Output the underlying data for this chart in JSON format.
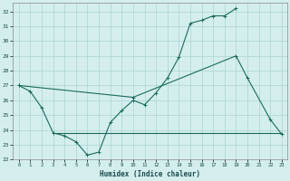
{
  "xlabel": "Humidex (Indice chaleur)",
  "background_color": "#d4eeee",
  "grid_color": "#aad4d4",
  "line_color": "#1a6b5a",
  "xlim": [
    -0.5,
    23.5
  ],
  "ylim": [
    22,
    32.6
  ],
  "yticks": [
    22,
    23,
    24,
    25,
    26,
    27,
    28,
    29,
    30,
    31,
    32
  ],
  "xticks": [
    0,
    1,
    2,
    3,
    4,
    5,
    6,
    7,
    8,
    9,
    10,
    11,
    12,
    13,
    14,
    15,
    16,
    17,
    18,
    19,
    20,
    21,
    22,
    23
  ],
  "line1_x": [
    0,
    1,
    2,
    3,
    4,
    5,
    6,
    7,
    8,
    9,
    10,
    11,
    12,
    13,
    14,
    15,
    16,
    17,
    18,
    19
  ],
  "line1_y": [
    27.0,
    26.6,
    25.5,
    23.8,
    23.6,
    23.2,
    22.3,
    22.5,
    24.5,
    25.3,
    26.0,
    25.7,
    26.5,
    27.5,
    28.9,
    31.2,
    31.4,
    31.7,
    31.7,
    32.2
  ],
  "line2_x": [
    0,
    10,
    19,
    20,
    22,
    23
  ],
  "line2_y": [
    27.0,
    26.2,
    29.0,
    27.5,
    24.7,
    23.7
  ],
  "line3_x": [
    3,
    23
  ],
  "line3_y": [
    23.8,
    23.8
  ]
}
